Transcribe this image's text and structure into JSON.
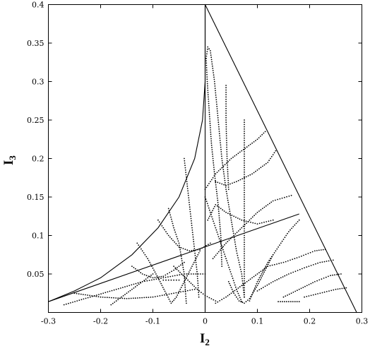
{
  "chart_data": {
    "type": "scatter",
    "title": "",
    "xlabel": "I",
    "xlabel_sub": "2",
    "ylabel": "I",
    "ylabel_sub": "3",
    "xlim": [
      -0.3,
      0.3
    ],
    "ylim": [
      0,
      0.4
    ],
    "grid": false,
    "x_ticks": [
      "-0.3",
      "-0.2",
      "-0.1",
      "0",
      "0.1",
      "0.2",
      "0.3"
    ],
    "y_ticks": [
      "0.05",
      "0.1",
      "0.15",
      "0.2",
      "0.25",
      "0.3",
      "0.35",
      "0.4"
    ],
    "boundary_lines": [
      {
        "kind": "cusp_left",
        "points": [
          [
            0,
            0.4
          ],
          [
            0,
            0.3
          ],
          [
            -0.005,
            0.25
          ],
          [
            -0.02,
            0.2
          ],
          [
            -0.05,
            0.15
          ],
          [
            -0.09,
            0.11
          ],
          [
            -0.14,
            0.075
          ],
          [
            -0.2,
            0.045
          ],
          [
            -0.25,
            0.028
          ],
          [
            -0.3,
            0.014
          ]
        ]
      },
      {
        "kind": "right_edge",
        "points": [
          [
            0,
            0.4
          ],
          [
            0.29,
            0.0
          ]
        ]
      },
      {
        "kind": "vertical",
        "points": [
          [
            0,
            0.4
          ],
          [
            0,
            0.0
          ]
        ]
      },
      {
        "kind": "diagonal",
        "points": [
          [
            -0.3,
            0.014
          ],
          [
            0.18,
            0.128
          ]
        ]
      }
    ],
    "point_curves": [
      {
        "points": [
          [
            0.002,
            0.33
          ],
          [
            0.005,
            0.345
          ],
          [
            0.01,
            0.34
          ],
          [
            0.018,
            0.3
          ],
          [
            0.025,
            0.25
          ],
          [
            0.032,
            0.2
          ],
          [
            0.04,
            0.16
          ],
          [
            0.05,
            0.12
          ],
          [
            0.06,
            0.08
          ],
          [
            0.07,
            0.05
          ],
          [
            0.075,
            0.02
          ]
        ]
      },
      {
        "points": [
          [
            0.002,
            0.33
          ],
          [
            0.004,
            0.3
          ],
          [
            0.008,
            0.26
          ],
          [
            0.012,
            0.22
          ],
          [
            0.018,
            0.18
          ],
          [
            0.025,
            0.14
          ],
          [
            0.03,
            0.1
          ],
          [
            0.032,
            0.06
          ]
        ]
      },
      {
        "points": [
          [
            0.04,
            0.295
          ],
          [
            0.04,
            0.25
          ],
          [
            0.042,
            0.2
          ],
          [
            0.045,
            0.16
          ]
        ]
      },
      {
        "points": [
          [
            0.075,
            0.25
          ],
          [
            0.075,
            0.2
          ],
          [
            0.075,
            0.15
          ],
          [
            0.075,
            0.1
          ],
          [
            0.075,
            0.05
          ],
          [
            0.075,
            0.02
          ]
        ]
      },
      {
        "points": [
          [
            0.0,
            0.16
          ],
          [
            0.02,
            0.18
          ],
          [
            0.05,
            0.2
          ],
          [
            0.08,
            0.215
          ],
          [
            0.1,
            0.225
          ],
          [
            0.115,
            0.235
          ]
        ]
      },
      {
        "points": [
          [
            0.02,
            0.17
          ],
          [
            0.04,
            0.165
          ],
          [
            0.06,
            0.17
          ],
          [
            0.09,
            0.18
          ],
          [
            0.12,
            0.195
          ],
          [
            0.135,
            0.21
          ]
        ]
      },
      {
        "points": [
          [
            0.005,
            0.12
          ],
          [
            0.02,
            0.14
          ],
          [
            0.04,
            0.13
          ],
          [
            0.07,
            0.12
          ],
          [
            0.1,
            0.115
          ],
          [
            0.13,
            0.12
          ]
        ]
      },
      {
        "points": [
          [
            0.015,
            0.07
          ],
          [
            0.04,
            0.09
          ],
          [
            0.07,
            0.11
          ],
          [
            0.1,
            0.13
          ],
          [
            0.13,
            0.145
          ],
          [
            0.165,
            0.152
          ]
        ]
      },
      {
        "points": [
          [
            0.085,
            0.015
          ],
          [
            0.1,
            0.04
          ],
          [
            0.12,
            0.065
          ],
          [
            0.14,
            0.085
          ],
          [
            0.16,
            0.105
          ],
          [
            0.18,
            0.12
          ]
        ]
      },
      {
        "points": [
          [
            0.02,
            0.012
          ],
          [
            0.04,
            0.02
          ],
          [
            0.06,
            0.03
          ],
          [
            0.09,
            0.045
          ],
          [
            0.12,
            0.06
          ],
          [
            0.15,
            0.065
          ],
          [
            0.18,
            0.072
          ],
          [
            0.21,
            0.08
          ],
          [
            0.23,
            0.082
          ]
        ]
      },
      {
        "points": [
          [
            0.1,
            0.028
          ],
          [
            0.13,
            0.04
          ],
          [
            0.16,
            0.05
          ],
          [
            0.19,
            0.058
          ],
          [
            0.22,
            0.065
          ],
          [
            0.245,
            0.068
          ]
        ]
      },
      {
        "points": [
          [
            0.15,
            0.02
          ],
          [
            0.18,
            0.03
          ],
          [
            0.21,
            0.04
          ],
          [
            0.24,
            0.048
          ],
          [
            0.26,
            0.05
          ]
        ]
      },
      {
        "points": [
          [
            0.19,
            0.02
          ],
          [
            0.22,
            0.025
          ],
          [
            0.25,
            0.03
          ],
          [
            0.27,
            0.032
          ]
        ]
      },
      {
        "points": [
          [
            0.14,
            0.014
          ],
          [
            0.16,
            0.014
          ],
          [
            0.18,
            0.014
          ]
        ]
      },
      {
        "points": [
          [
            -0.27,
            0.01
          ],
          [
            -0.22,
            0.02
          ],
          [
            -0.17,
            0.03
          ],
          [
            -0.12,
            0.04
          ],
          [
            -0.08,
            0.045
          ],
          [
            -0.04,
            0.05
          ],
          [
            0.0,
            0.05
          ]
        ]
      },
      {
        "points": [
          [
            -0.25,
            0.025
          ],
          [
            -0.2,
            0.02
          ],
          [
            -0.15,
            0.018
          ],
          [
            -0.1,
            0.02
          ],
          [
            -0.06,
            0.025
          ],
          [
            -0.02,
            0.03
          ]
        ]
      },
      {
        "points": [
          [
            -0.13,
            0.09
          ],
          [
            -0.11,
            0.07
          ],
          [
            -0.09,
            0.045
          ],
          [
            -0.075,
            0.025
          ],
          [
            -0.065,
            0.012
          ],
          [
            -0.055,
            0.02
          ],
          [
            -0.04,
            0.04
          ],
          [
            -0.025,
            0.06
          ],
          [
            -0.01,
            0.08
          ]
        ]
      },
      {
        "points": [
          [
            -0.18,
            0.01
          ],
          [
            -0.15,
            0.025
          ],
          [
            -0.12,
            0.04
          ],
          [
            -0.1,
            0.05
          ]
        ]
      },
      {
        "points": [
          [
            -0.04,
            0.2
          ],
          [
            -0.035,
            0.17
          ],
          [
            -0.03,
            0.14
          ],
          [
            -0.025,
            0.11
          ],
          [
            -0.02,
            0.08
          ],
          [
            -0.015,
            0.05
          ],
          [
            -0.012,
            0.02
          ]
        ]
      },
      {
        "points": [
          [
            -0.09,
            0.12
          ],
          [
            -0.07,
            0.1
          ],
          [
            -0.05,
            0.085
          ],
          [
            -0.03,
            0.08
          ],
          [
            -0.01,
            0.082
          ],
          [
            0.01,
            0.09
          ]
        ]
      },
      {
        "points": [
          [
            -0.07,
            0.135
          ],
          [
            -0.06,
            0.11
          ],
          [
            -0.05,
            0.09
          ],
          [
            -0.045,
            0.07
          ],
          [
            -0.04,
            0.05
          ],
          [
            -0.038,
            0.03
          ],
          [
            -0.036,
            0.012
          ]
        ]
      },
      {
        "points": [
          [
            -0.06,
            0.06
          ],
          [
            -0.045,
            0.05
          ],
          [
            -0.03,
            0.04
          ],
          [
            -0.015,
            0.03
          ],
          [
            0.0,
            0.022
          ],
          [
            0.02,
            0.015
          ]
        ]
      },
      {
        "points": [
          [
            -0.08,
            0.042
          ],
          [
            -0.065,
            0.042
          ],
          [
            -0.05,
            0.042
          ]
        ]
      },
      {
        "points": [
          [
            0.0,
            0.15
          ],
          [
            0.01,
            0.13
          ],
          [
            0.02,
            0.11
          ],
          [
            0.03,
            0.09
          ],
          [
            0.04,
            0.07
          ],
          [
            0.05,
            0.05
          ],
          [
            0.06,
            0.03
          ],
          [
            0.07,
            0.014
          ]
        ]
      },
      {
        "points": [
          [
            0.045,
            0.04
          ],
          [
            0.055,
            0.025
          ],
          [
            0.065,
            0.015
          ],
          [
            0.075,
            0.012
          ],
          [
            0.085,
            0.018
          ],
          [
            0.1,
            0.035
          ],
          [
            0.115,
            0.055
          ],
          [
            0.13,
            0.075
          ]
        ]
      },
      {
        "points": [
          [
            -0.14,
            0.06
          ],
          [
            -0.12,
            0.05
          ],
          [
            -0.1,
            0.045
          ],
          [
            -0.08,
            0.047
          ],
          [
            -0.06,
            0.055
          ],
          [
            -0.04,
            0.065
          ]
        ]
      }
    ]
  }
}
